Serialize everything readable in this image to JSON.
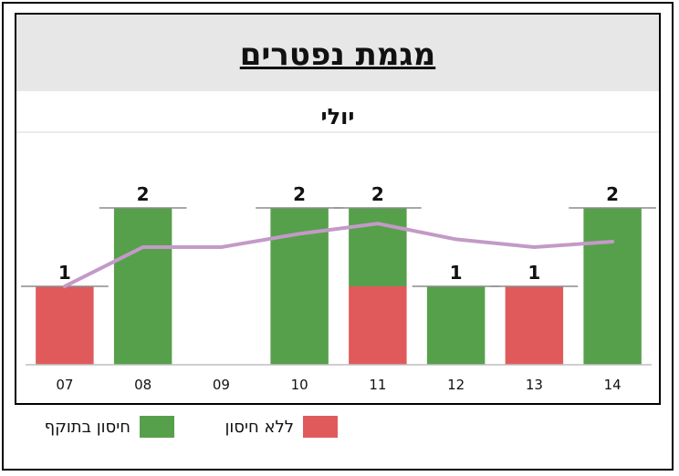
{
  "chart_data": {
    "type": "bar",
    "stacked": true,
    "title": "מגמת נפטרים",
    "subtitle": "יולי",
    "categories": [
      "07",
      "08",
      "09",
      "10",
      "11",
      "12",
      "13",
      "14"
    ],
    "series": [
      {
        "name": "חיסון בתוקף",
        "values": [
          0,
          2,
          0,
          2,
          1,
          1,
          0,
          2
        ],
        "color": "#57a04b"
      },
      {
        "name": "ללא חיסון",
        "values": [
          1,
          0,
          0,
          0,
          1,
          0,
          1,
          0
        ],
        "color": "#e05a5c"
      }
    ],
    "totals": [
      1,
      2,
      0,
      2,
      2,
      1,
      1,
      2
    ],
    "trend": {
      "values": [
        1.0,
        1.5,
        1.5,
        1.67,
        1.8,
        1.6,
        1.5,
        1.57
      ],
      "color": "#c39ac7"
    },
    "ylim": [
      0,
      2.5
    ],
    "legend_position": "bottom"
  }
}
